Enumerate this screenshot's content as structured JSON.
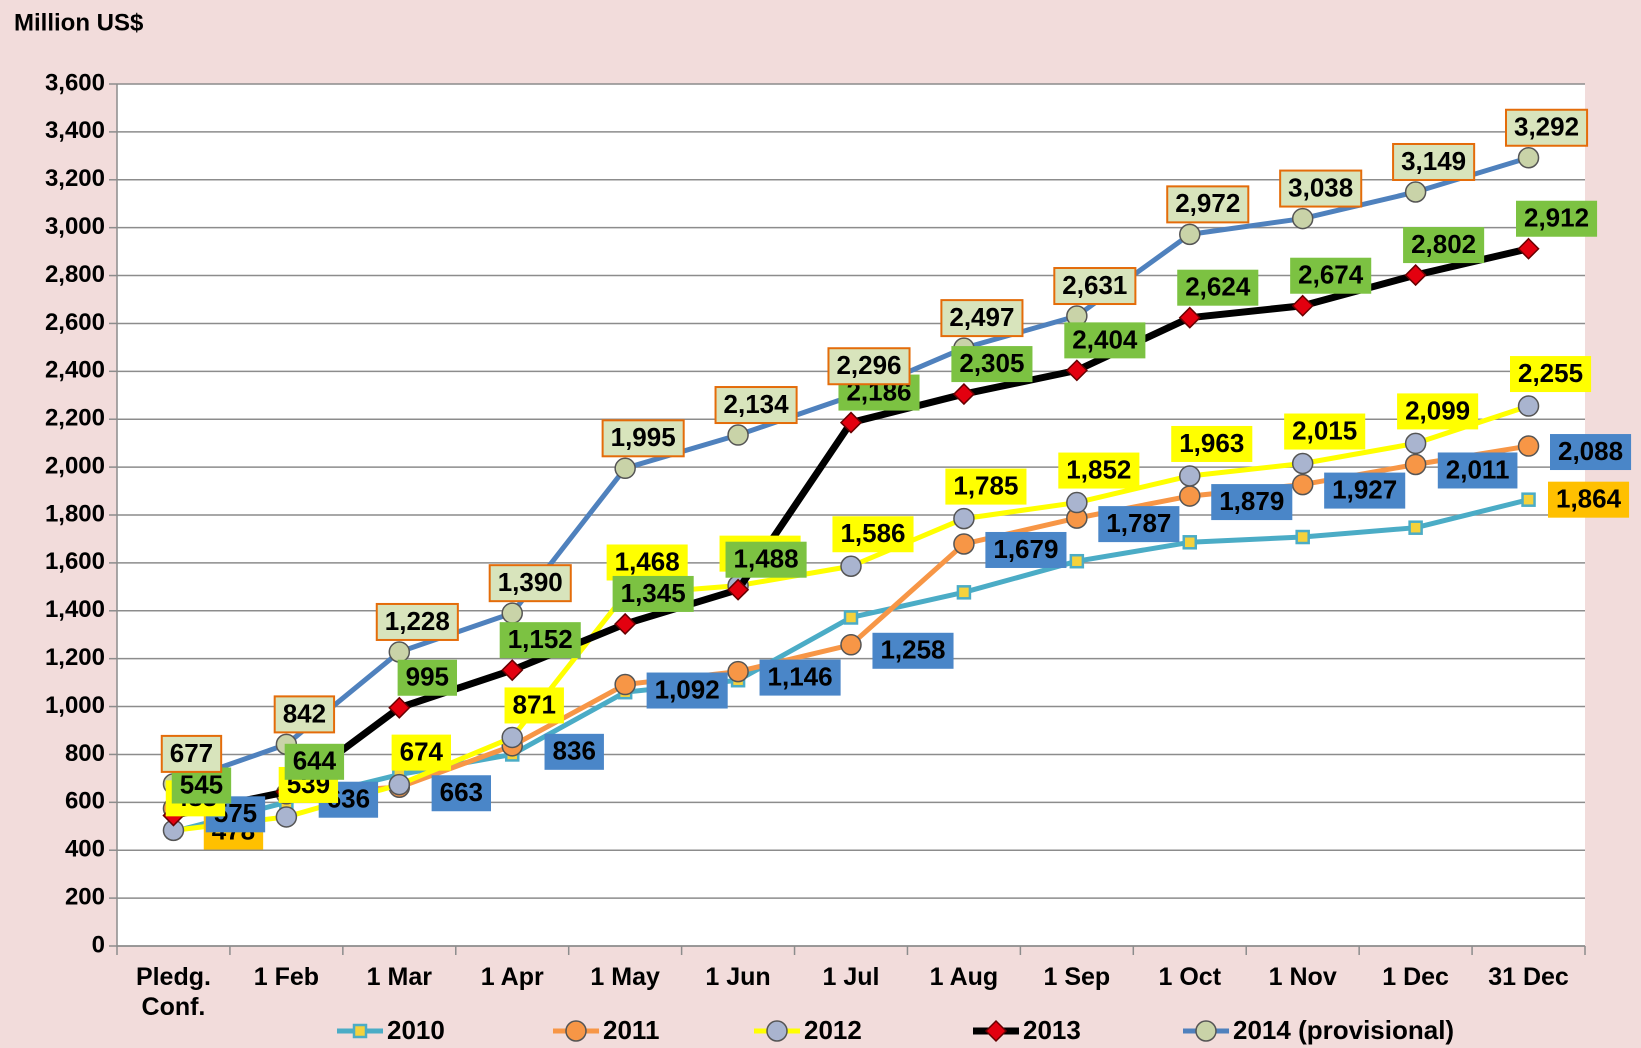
{
  "chart_data": {
    "type": "line",
    "y_label": "Million US$",
    "categories": [
      "Pledg. Conf.",
      "1 Feb",
      "1 Mar",
      "1 Apr",
      "1 May",
      "1 Jun",
      "1 Jul",
      "1 Aug",
      "1 Sep",
      "1 Oct",
      "1 Nov",
      "1 Dec",
      "31 Dec"
    ],
    "ylim": [
      0,
      3600
    ],
    "yticks": [
      0,
      200,
      400,
      600,
      800,
      {
        "value": 1000,
        "label": "1,000"
      },
      {
        "value": 1200,
        "label": "1,200"
      },
      {
        "value": 1400,
        "label": "1,400"
      },
      {
        "value": 1600,
        "label": "1,600"
      },
      {
        "value": 1800,
        "label": "1,800"
      },
      {
        "value": 2000,
        "label": "2,000"
      },
      {
        "value": 2200,
        "label": "2,200"
      },
      {
        "value": 2400,
        "label": "2,400"
      },
      {
        "value": 2600,
        "label": "2,600"
      },
      {
        "value": 2800,
        "label": "2,800"
      },
      {
        "value": 3000,
        "label": "3,000"
      },
      {
        "value": 3200,
        "label": "3,200"
      },
      {
        "value": 3400,
        "label": "3,400"
      },
      {
        "value": 3600,
        "label": "3,600"
      }
    ],
    "grid": true,
    "legend": "bottom",
    "series": [
      {
        "name": "2010",
        "color": "#4bacc6",
        "marker": "square",
        "marker_color": "#f5d23c",
        "label_color": "#ffc000",
        "values": [
          478,
          600,
          716,
          800,
          1060,
          1110,
          1372,
          1477,
          1607,
          1686,
          1708,
          1747,
          1864
        ],
        "value_labels": [
          "478",
          null,
          null,
          null,
          null,
          null,
          null,
          null,
          null,
          null,
          null,
          null,
          "1,864"
        ]
      },
      {
        "name": "2011",
        "color": "#f79646",
        "marker": "circle",
        "marker_color": "#f79646",
        "label_color": "#4a86c8",
        "values": [
          575,
          636,
          663,
          836,
          1092,
          1146,
          1258,
          1679,
          1787,
          1879,
          1927,
          2011,
          2088
        ],
        "value_labels": [
          "575",
          "636",
          "663",
          "836",
          "1,092",
          "1,146",
          "1,258",
          "1,679",
          "1,787",
          "1,879",
          "1,927",
          "2,011",
          "2,088"
        ]
      },
      {
        "name": "2012",
        "color": "#ffff00",
        "marker": "circle",
        "marker_color": "#a9b4cf",
        "label_color": "#ffff00",
        "values": [
          483,
          539,
          674,
          871,
          1468,
          1505,
          1586,
          1785,
          1852,
          1963,
          2015,
          2099,
          2255
        ],
        "value_labels": [
          "483",
          "539",
          "674",
          "871",
          "1,468",
          "1,505",
          "1,586",
          "1,785",
          "1,852",
          "1,963",
          "2,015",
          "2,099",
          "2,255"
        ]
      },
      {
        "name": "2013",
        "color": "#000000",
        "marker": "diamond",
        "marker_color": "#e3000f",
        "label_color": "#7cc242",
        "values": [
          545,
          644,
          995,
          1152,
          1345,
          1488,
          2186,
          2305,
          2404,
          2624,
          2674,
          2802,
          2912
        ],
        "value_labels": [
          "545",
          "644",
          "995",
          "1,152",
          "1,345",
          "1,488",
          "2,186",
          "2,305",
          "2,404",
          "2,624",
          "2,674",
          "2,802",
          "2,912"
        ]
      },
      {
        "name": "2014 (provisional)",
        "color": "#4f81bd",
        "marker": "circle",
        "marker_color": "#c9d3a8",
        "label_color": "#d8e4bc",
        "values": [
          677,
          842,
          1228,
          1390,
          1995,
          2134,
          2296,
          2497,
          2631,
          2972,
          3038,
          3149,
          3292
        ],
        "value_labels": [
          "677",
          "842",
          "1,228",
          "1,390",
          "1,995",
          "2,134",
          "2,296",
          "2,497",
          "2,631",
          "2,972",
          "3,038",
          "3,149",
          "3,292"
        ]
      }
    ]
  }
}
